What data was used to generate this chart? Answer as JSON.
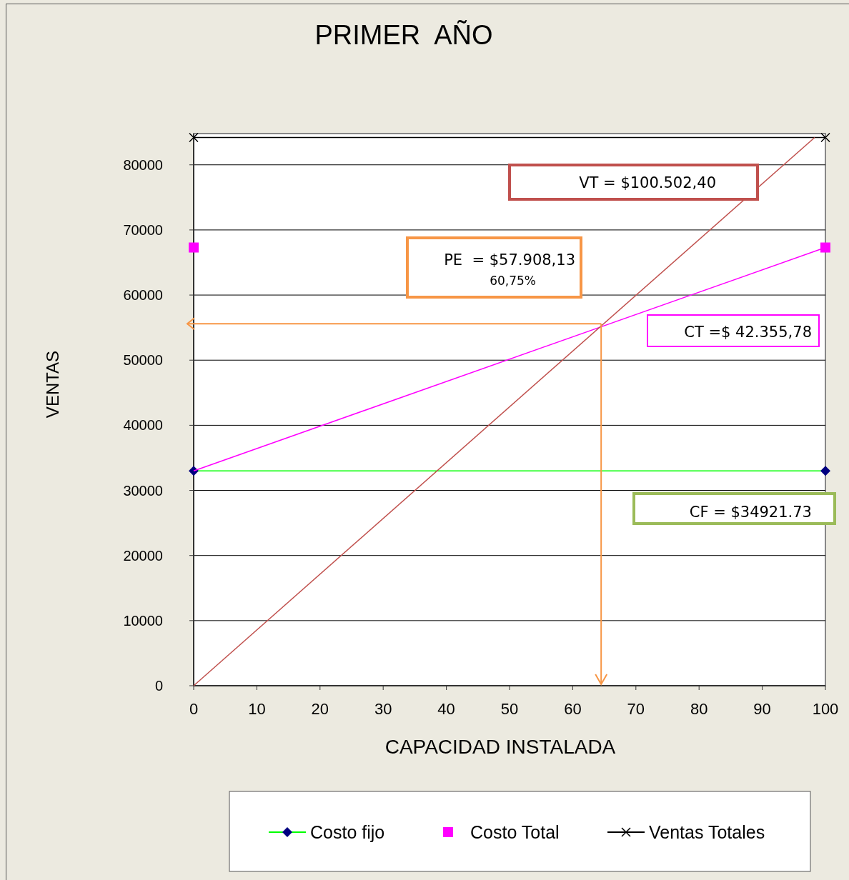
{
  "chart_data": {
    "type": "line",
    "title": "PRIMER  AÑO",
    "xlabel": "CAPACIDAD INSTALADA",
    "ylabel": "VENTAS",
    "xlim": [
      0,
      100
    ],
    "xticks": [
      0,
      10,
      20,
      30,
      40,
      50,
      60,
      70,
      80,
      90,
      100
    ],
    "ylim": [
      0,
      84800
    ],
    "yticks": [
      0,
      10000,
      20000,
      30000,
      40000,
      50000,
      60000,
      70000,
      80000
    ],
    "grid": "y",
    "legend": "bottom",
    "series": [
      {
        "name": "Costo fijo",
        "color": "#00ff00",
        "marker": "diamond",
        "x": [
          0,
          100
        ],
        "values": [
          33000,
          33000
        ]
      },
      {
        "name": "Costo Total",
        "type": "scatter",
        "color": "#ff00ff",
        "marker": "square",
        "x": [
          0,
          100
        ],
        "values": [
          67300,
          67300
        ]
      },
      {
        "name": "Ventas Totales",
        "color": "#000000",
        "marker": "cross",
        "x": [
          0,
          100
        ],
        "values": [
          84200,
          84200
        ]
      },
      {
        "color": "#ff00ff",
        "marker": "none",
        "x": [
          0,
          100
        ],
        "values": [
          33000,
          67300
        ]
      },
      {
        "color": "#c0504d",
        "marker": "none",
        "x": [
          0,
          98.3
        ],
        "values": [
          0,
          84200
        ]
      }
    ],
    "ref_lines": [
      {
        "axis": "y",
        "value": 55600,
        "color": "#f79646"
      },
      {
        "axis": "x",
        "value": 64.5,
        "color": "#f79646"
      }
    ],
    "annotations": [
      "VT = $100.502,40",
      "PE  = $57.908,13",
      "60,75%",
      "CT =$ 42.355,78",
      "CF = $34921.73"
    ]
  }
}
